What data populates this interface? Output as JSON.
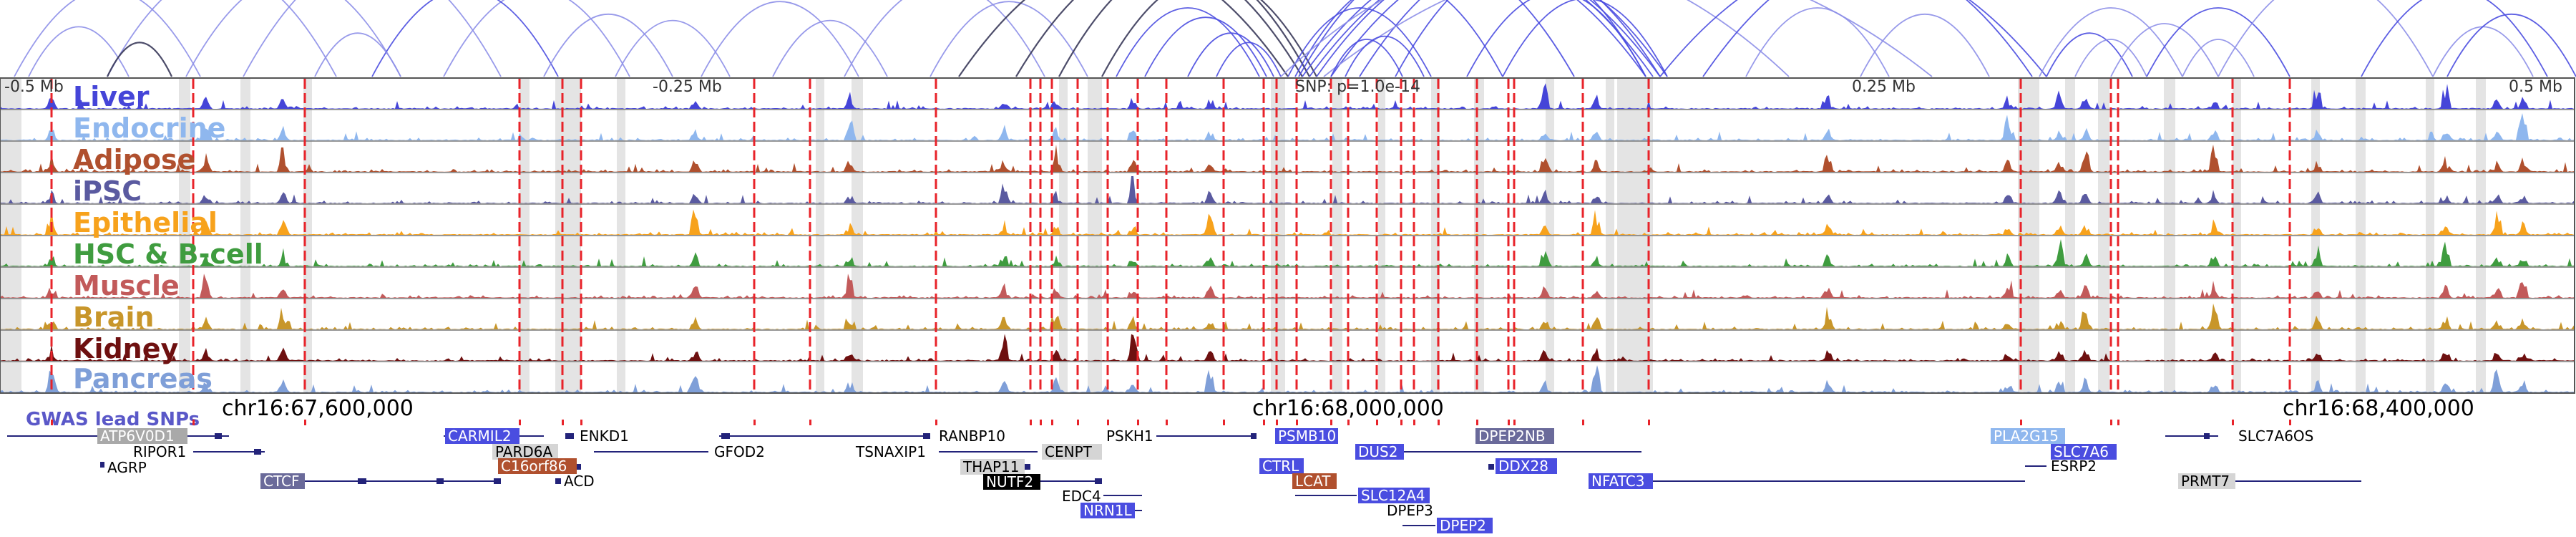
{
  "interaction_panel": {
    "colors": {
      "blue": "#4a4de0",
      "light": "#8d8fe8",
      "dark": "#3a3a5a"
    }
  },
  "axis": {
    "ticks": [
      "-0.5 Mb",
      "-0.25 Mb",
      "0.25 Mb",
      "0.5 Mb"
    ],
    "snp_label": "SNP: p=1.0e-14",
    "lead_snp_color": "#e8232a",
    "highlight_color": "#d9d9d9"
  },
  "tracks": [
    {
      "label": "Liver",
      "color": "#4545d8"
    },
    {
      "label": "Endocrine",
      "color": "#8fb7ee"
    },
    {
      "label": "Adipose",
      "color": "#b0502e"
    },
    {
      "label": "iPSC",
      "color": "#5a5aa0"
    },
    {
      "label": "Epithelial",
      "color": "#f7a21c"
    },
    {
      "label": "HSC & B-cell",
      "color": "#3f9c3f"
    },
    {
      "label": "Muscle",
      "color": "#c25a5a"
    },
    {
      "label": "Brain",
      "color": "#c8962a"
    },
    {
      "label": "Kidney",
      "color": "#6e1010"
    },
    {
      "label": "Pancreas",
      "color": "#7f9fd8"
    }
  ],
  "coordinates": [
    "chr16:67,600,000",
    "chr16:68,000,000",
    "chr16:68,400,000"
  ],
  "gwas_label": "GWAS lead SNPs",
  "genes": [
    {
      "name": "ATP6V0D1",
      "style": "grey"
    },
    {
      "name": "RIPOR1",
      "style": "plain"
    },
    {
      "name": "AGRP",
      "style": "plain"
    },
    {
      "name": "CTCF",
      "style": "slate"
    },
    {
      "name": "CARMIL2",
      "style": "blue"
    },
    {
      "name": "PARD6A",
      "style": "grey"
    },
    {
      "name": "C16orf86",
      "style": "brown"
    },
    {
      "name": "ACD",
      "style": "plain"
    },
    {
      "name": "ENKD1",
      "style": "plain"
    },
    {
      "name": "GFOD2",
      "style": "plain"
    },
    {
      "name": "RANBP10",
      "style": "plain"
    },
    {
      "name": "TSNAXIP1",
      "style": "plain"
    },
    {
      "name": "CENPT",
      "style": "grey"
    },
    {
      "name": "THAP11",
      "style": "grey"
    },
    {
      "name": "NUTF2",
      "style": "black"
    },
    {
      "name": "EDC4",
      "style": "plain"
    },
    {
      "name": "NRN1L",
      "style": "blue"
    },
    {
      "name": "PSKH1",
      "style": "plain"
    },
    {
      "name": "PSMB10",
      "style": "blue"
    },
    {
      "name": "CTRL",
      "style": "blue"
    },
    {
      "name": "LCAT",
      "style": "brown"
    },
    {
      "name": "SLC12A4",
      "style": "blue"
    },
    {
      "name": "DPEP3",
      "style": "plain"
    },
    {
      "name": "DPEP2",
      "style": "blue"
    },
    {
      "name": "DUS2",
      "style": "blue"
    },
    {
      "name": "DPEP2NB",
      "style": "slate"
    },
    {
      "name": "DDX28",
      "style": "blue"
    },
    {
      "name": "NFATC3",
      "style": "blue"
    },
    {
      "name": "PLA2G15",
      "style": "lightblue"
    },
    {
      "name": "SLC7A6",
      "style": "blue"
    },
    {
      "name": "ESRP2",
      "style": "plain"
    },
    {
      "name": "SLC7A6OS",
      "style": "plain"
    },
    {
      "name": "PRMT7",
      "style": "grey"
    }
  ]
}
